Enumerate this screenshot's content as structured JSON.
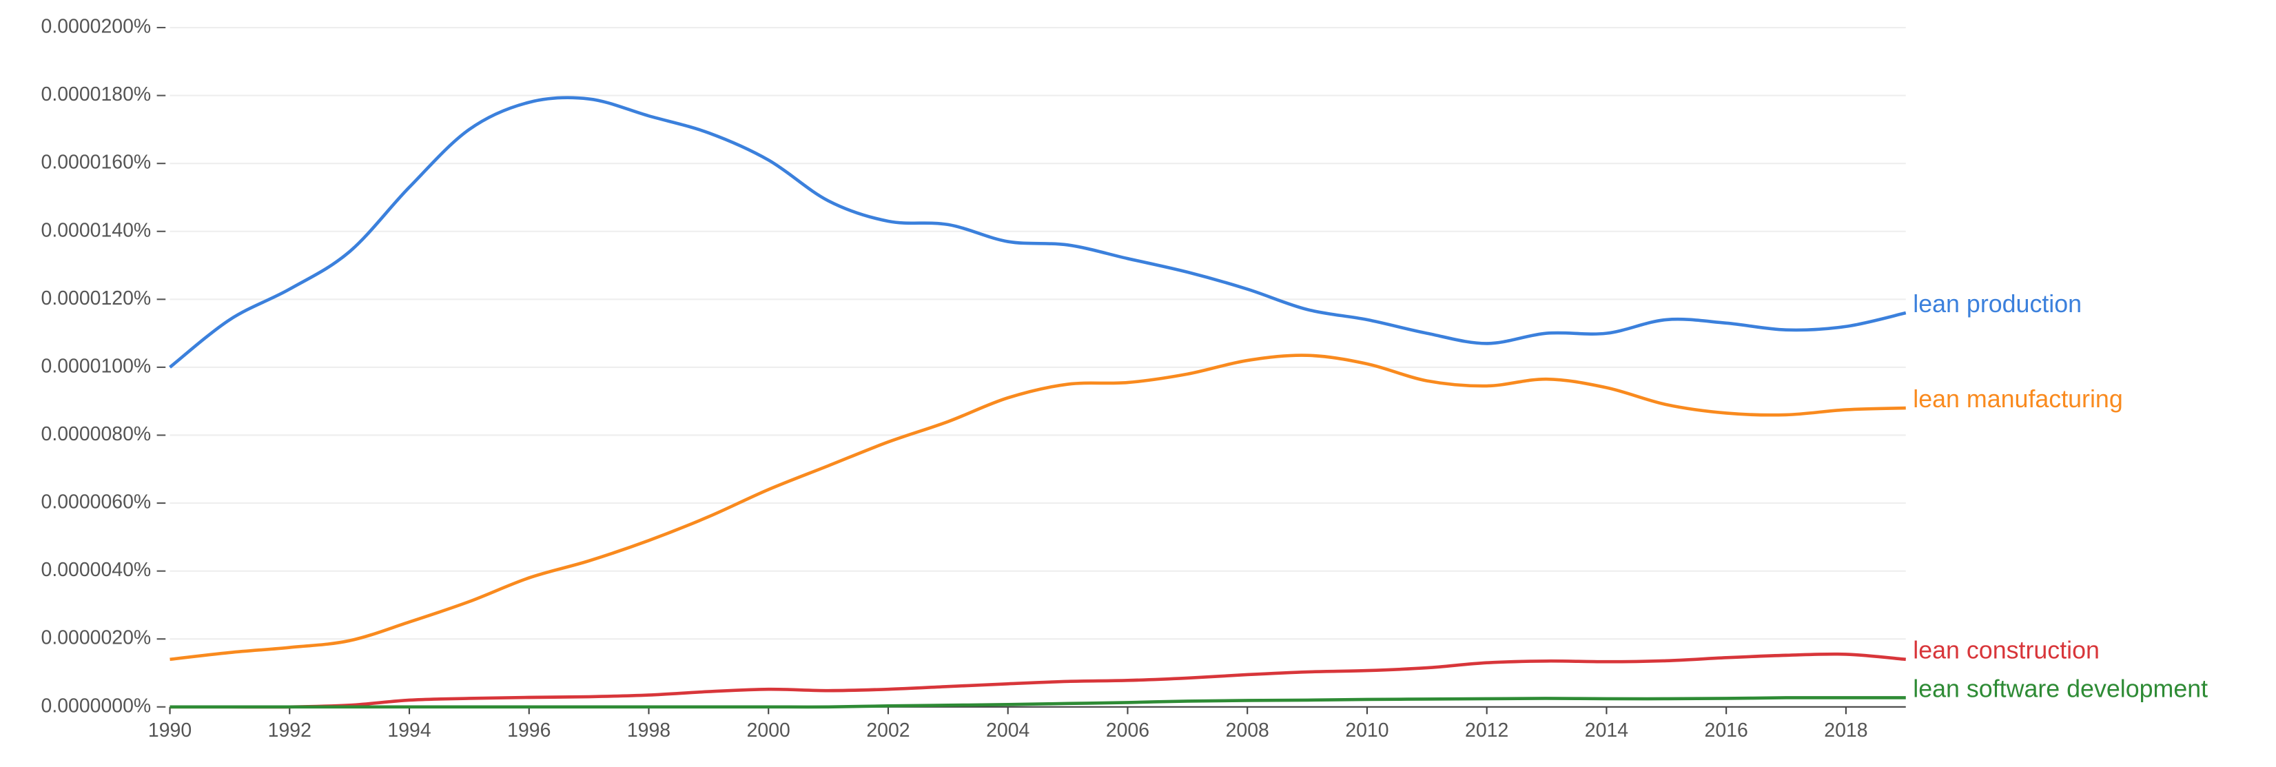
{
  "chart_data": {
    "type": "line",
    "x": [
      1990,
      1991,
      1992,
      1993,
      1994,
      1995,
      1996,
      1997,
      1998,
      1999,
      2000,
      2001,
      2002,
      2003,
      2004,
      2005,
      2006,
      2007,
      2008,
      2009,
      2010,
      2011,
      2012,
      2013,
      2014,
      2015,
      2016,
      2017,
      2018,
      2019
    ],
    "xlim": [
      1990,
      2019
    ],
    "xticks": [
      1990,
      1992,
      1994,
      1996,
      1998,
      2000,
      2002,
      2004,
      2006,
      2008,
      2010,
      2012,
      2014,
      2016,
      2018
    ],
    "ylim": [
      0,
      2e-05
    ],
    "yticks": [
      {
        "value": 0,
        "label": "0.0000000%"
      },
      {
        "value": 2e-06,
        "label": "0.0000020%"
      },
      {
        "value": 4e-06,
        "label": "0.0000040%"
      },
      {
        "value": 6e-06,
        "label": "0.0000060%"
      },
      {
        "value": 8e-06,
        "label": "0.0000080%"
      },
      {
        "value": 1e-05,
        "label": "0.0000100%"
      },
      {
        "value": 1.2e-05,
        "label": "0.0000120%"
      },
      {
        "value": 1.4e-05,
        "label": "0.0000140%"
      },
      {
        "value": 1.6e-05,
        "label": "0.0000160%"
      },
      {
        "value": 1.8e-05,
        "label": "0.0000180%"
      },
      {
        "value": 2e-05,
        "label": "0.0000200%"
      }
    ],
    "grid": true,
    "series": [
      {
        "name": "lean production",
        "color": "#3b80dc",
        "values": [
          1e-05,
          1.14e-05,
          1.23e-05,
          1.34e-05,
          1.53e-05,
          1.7e-05,
          1.78e-05,
          1.79e-05,
          1.74e-05,
          1.69e-05,
          1.61e-05,
          1.49e-05,
          1.43e-05,
          1.42e-05,
          1.37e-05,
          1.36e-05,
          1.32e-05,
          1.28e-05,
          1.23e-05,
          1.17e-05,
          1.14e-05,
          1.1e-05,
          1.07e-05,
          1.1e-05,
          1.1e-05,
          1.14e-05,
          1.13e-05,
          1.11e-05,
          1.12e-05,
          1.16e-05
        ]
      },
      {
        "name": "lean manufacturing",
        "color": "#f98a1e",
        "values": [
          1.4e-06,
          1.6e-06,
          1.75e-06,
          1.95e-06,
          2.5e-06,
          3.1e-06,
          3.8e-06,
          4.3e-06,
          4.9e-06,
          5.6e-06,
          6.4e-06,
          7.1e-06,
          7.8e-06,
          8.4e-06,
          9.1e-06,
          9.5e-06,
          9.55e-06,
          9.8e-06,
          1.02e-05,
          1.035e-05,
          1.01e-05,
          9.6e-06,
          9.45e-06,
          9.65e-06,
          9.4e-06,
          8.9e-06,
          8.65e-06,
          8.6e-06,
          8.75e-06,
          8.8e-06
        ]
      },
      {
        "name": "lean construction",
        "color": "#d8363a",
        "values": [
          0,
          0,
          0,
          5e-08,
          2e-07,
          2.5e-07,
          2.8e-07,
          3e-07,
          3.5e-07,
          4.5e-07,
          5.2e-07,
          4.8e-07,
          5.2e-07,
          6e-07,
          6.8e-07,
          7.5e-07,
          7.8e-07,
          8.5e-07,
          9.5e-07,
          1.03e-06,
          1.07e-06,
          1.15e-06,
          1.3e-06,
          1.35e-06,
          1.33e-06,
          1.36e-06,
          1.45e-06,
          1.52e-06,
          1.55e-06,
          1.4e-06
        ]
      },
      {
        "name": "lean software development",
        "color": "#2e8b35",
        "values": [
          0,
          0,
          0,
          0,
          0,
          0,
          0,
          0,
          0,
          0,
          0,
          0,
          3e-08,
          5e-08,
          7e-08,
          1e-07,
          1.3e-07,
          1.7e-07,
          1.9e-07,
          2e-07,
          2.2e-07,
          2.3e-07,
          2.4e-07,
          2.5e-07,
          2.4e-07,
          2.4e-07,
          2.5e-07,
          2.7e-07,
          2.7e-07,
          2.7e-07
        ]
      }
    ]
  }
}
